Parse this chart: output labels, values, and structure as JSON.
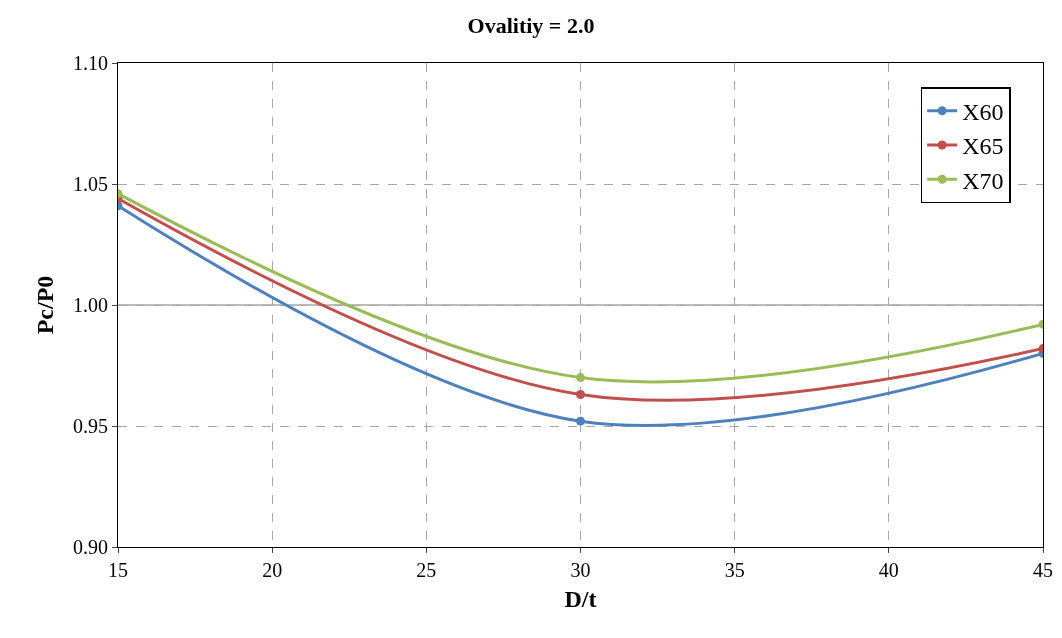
{
  "chart_data": {
    "type": "line",
    "title": "Ovalitiy = 2.0",
    "xlabel": "D/t",
    "ylabel": "Pc/P0",
    "x": [
      15,
      30,
      45
    ],
    "series": [
      {
        "name": "X60",
        "color": "#4f81bd",
        "values": [
          1.041,
          0.952,
          0.98
        ]
      },
      {
        "name": "X65",
        "color": "#c0504d",
        "values": [
          1.044,
          0.963,
          0.982
        ]
      },
      {
        "name": "X70",
        "color": "#9bbb59",
        "values": [
          1.046,
          0.97,
          0.992
        ]
      }
    ],
    "xlim": [
      15,
      45
    ],
    "xticks": [
      15,
      20,
      25,
      30,
      35,
      40,
      45
    ],
    "ylim": [
      0.9,
      1.1
    ],
    "yticks": [
      {
        "value": 0.9,
        "label": "0.90"
      },
      {
        "value": 0.95,
        "label": "0.95"
      },
      {
        "value": 1.0,
        "label": "1.00"
      },
      {
        "value": 1.05,
        "label": "1.05"
      },
      {
        "value": 1.1,
        "label": "1.10"
      }
    ],
    "ref_lines": [
      {
        "axis": "y",
        "value": 1.0,
        "color": "#a6a6a6",
        "line_style": "solid"
      }
    ],
    "grid": true,
    "legend": "top right",
    "marker": "circle",
    "line_style": "solid"
  }
}
